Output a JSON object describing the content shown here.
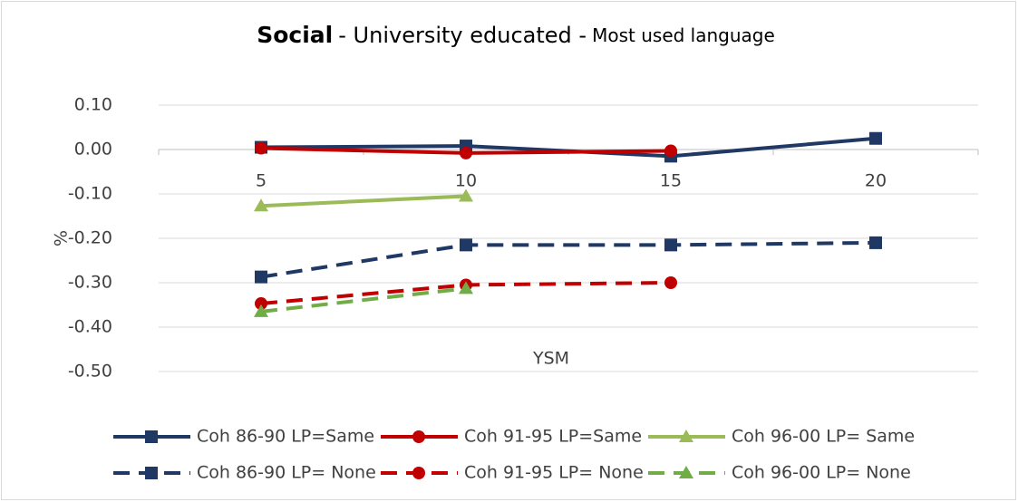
{
  "chart_data": {
    "type": "line",
    "title": [
      "Social",
      "- University educated -",
      "Most used language"
    ],
    "x_label": "YSM",
    "y_label": "%",
    "categories": [
      5,
      10,
      15,
      20
    ],
    "ylim": [
      -0.5,
      0.1
    ],
    "yticks": [
      {
        "value": 0.1,
        "label": "0.10"
      },
      {
        "value": 0,
        "label": "0.00"
      },
      {
        "value": -0.1,
        "label": "-0.10"
      },
      {
        "value": -0.2,
        "label": "-0.20"
      },
      {
        "value": -0.3,
        "label": "-0.30"
      },
      {
        "value": -0.4,
        "label": "-0.40"
      },
      {
        "value": -0.5,
        "label": "-0.50"
      }
    ],
    "grid": true,
    "series": [
      {
        "name": "Coh 86-90 LP=Same",
        "color": "#1f3864",
        "marker": "square",
        "dash": false,
        "values": [
          0.005,
          0.008,
          -0.015,
          0.025
        ]
      },
      {
        "name": "Coh 91-95 LP=Same",
        "color": "#c00000",
        "marker": "circle",
        "dash": false,
        "values": [
          0.003,
          -0.008,
          -0.003,
          null
        ]
      },
      {
        "name": "Coh 96-00 LP= Same",
        "color": "#9bbb59",
        "marker": "triangle",
        "dash": false,
        "values": [
          -0.127,
          -0.105,
          null,
          null
        ]
      },
      {
        "name": "Coh 86-90 LP= None",
        "color": "#1f3864",
        "marker": "square",
        "dash": true,
        "values": [
          -0.287,
          -0.215,
          -0.215,
          -0.21
        ]
      },
      {
        "name": "Coh 91-95 LP= None",
        "color": "#c00000",
        "marker": "circle",
        "dash": true,
        "values": [
          -0.347,
          -0.305,
          -0.3,
          null
        ]
      },
      {
        "name": "Coh 96-00 LP= None",
        "color": "#70ad47",
        "marker": "triangle",
        "dash": true,
        "values": [
          -0.365,
          -0.313,
          null,
          null
        ]
      }
    ]
  }
}
